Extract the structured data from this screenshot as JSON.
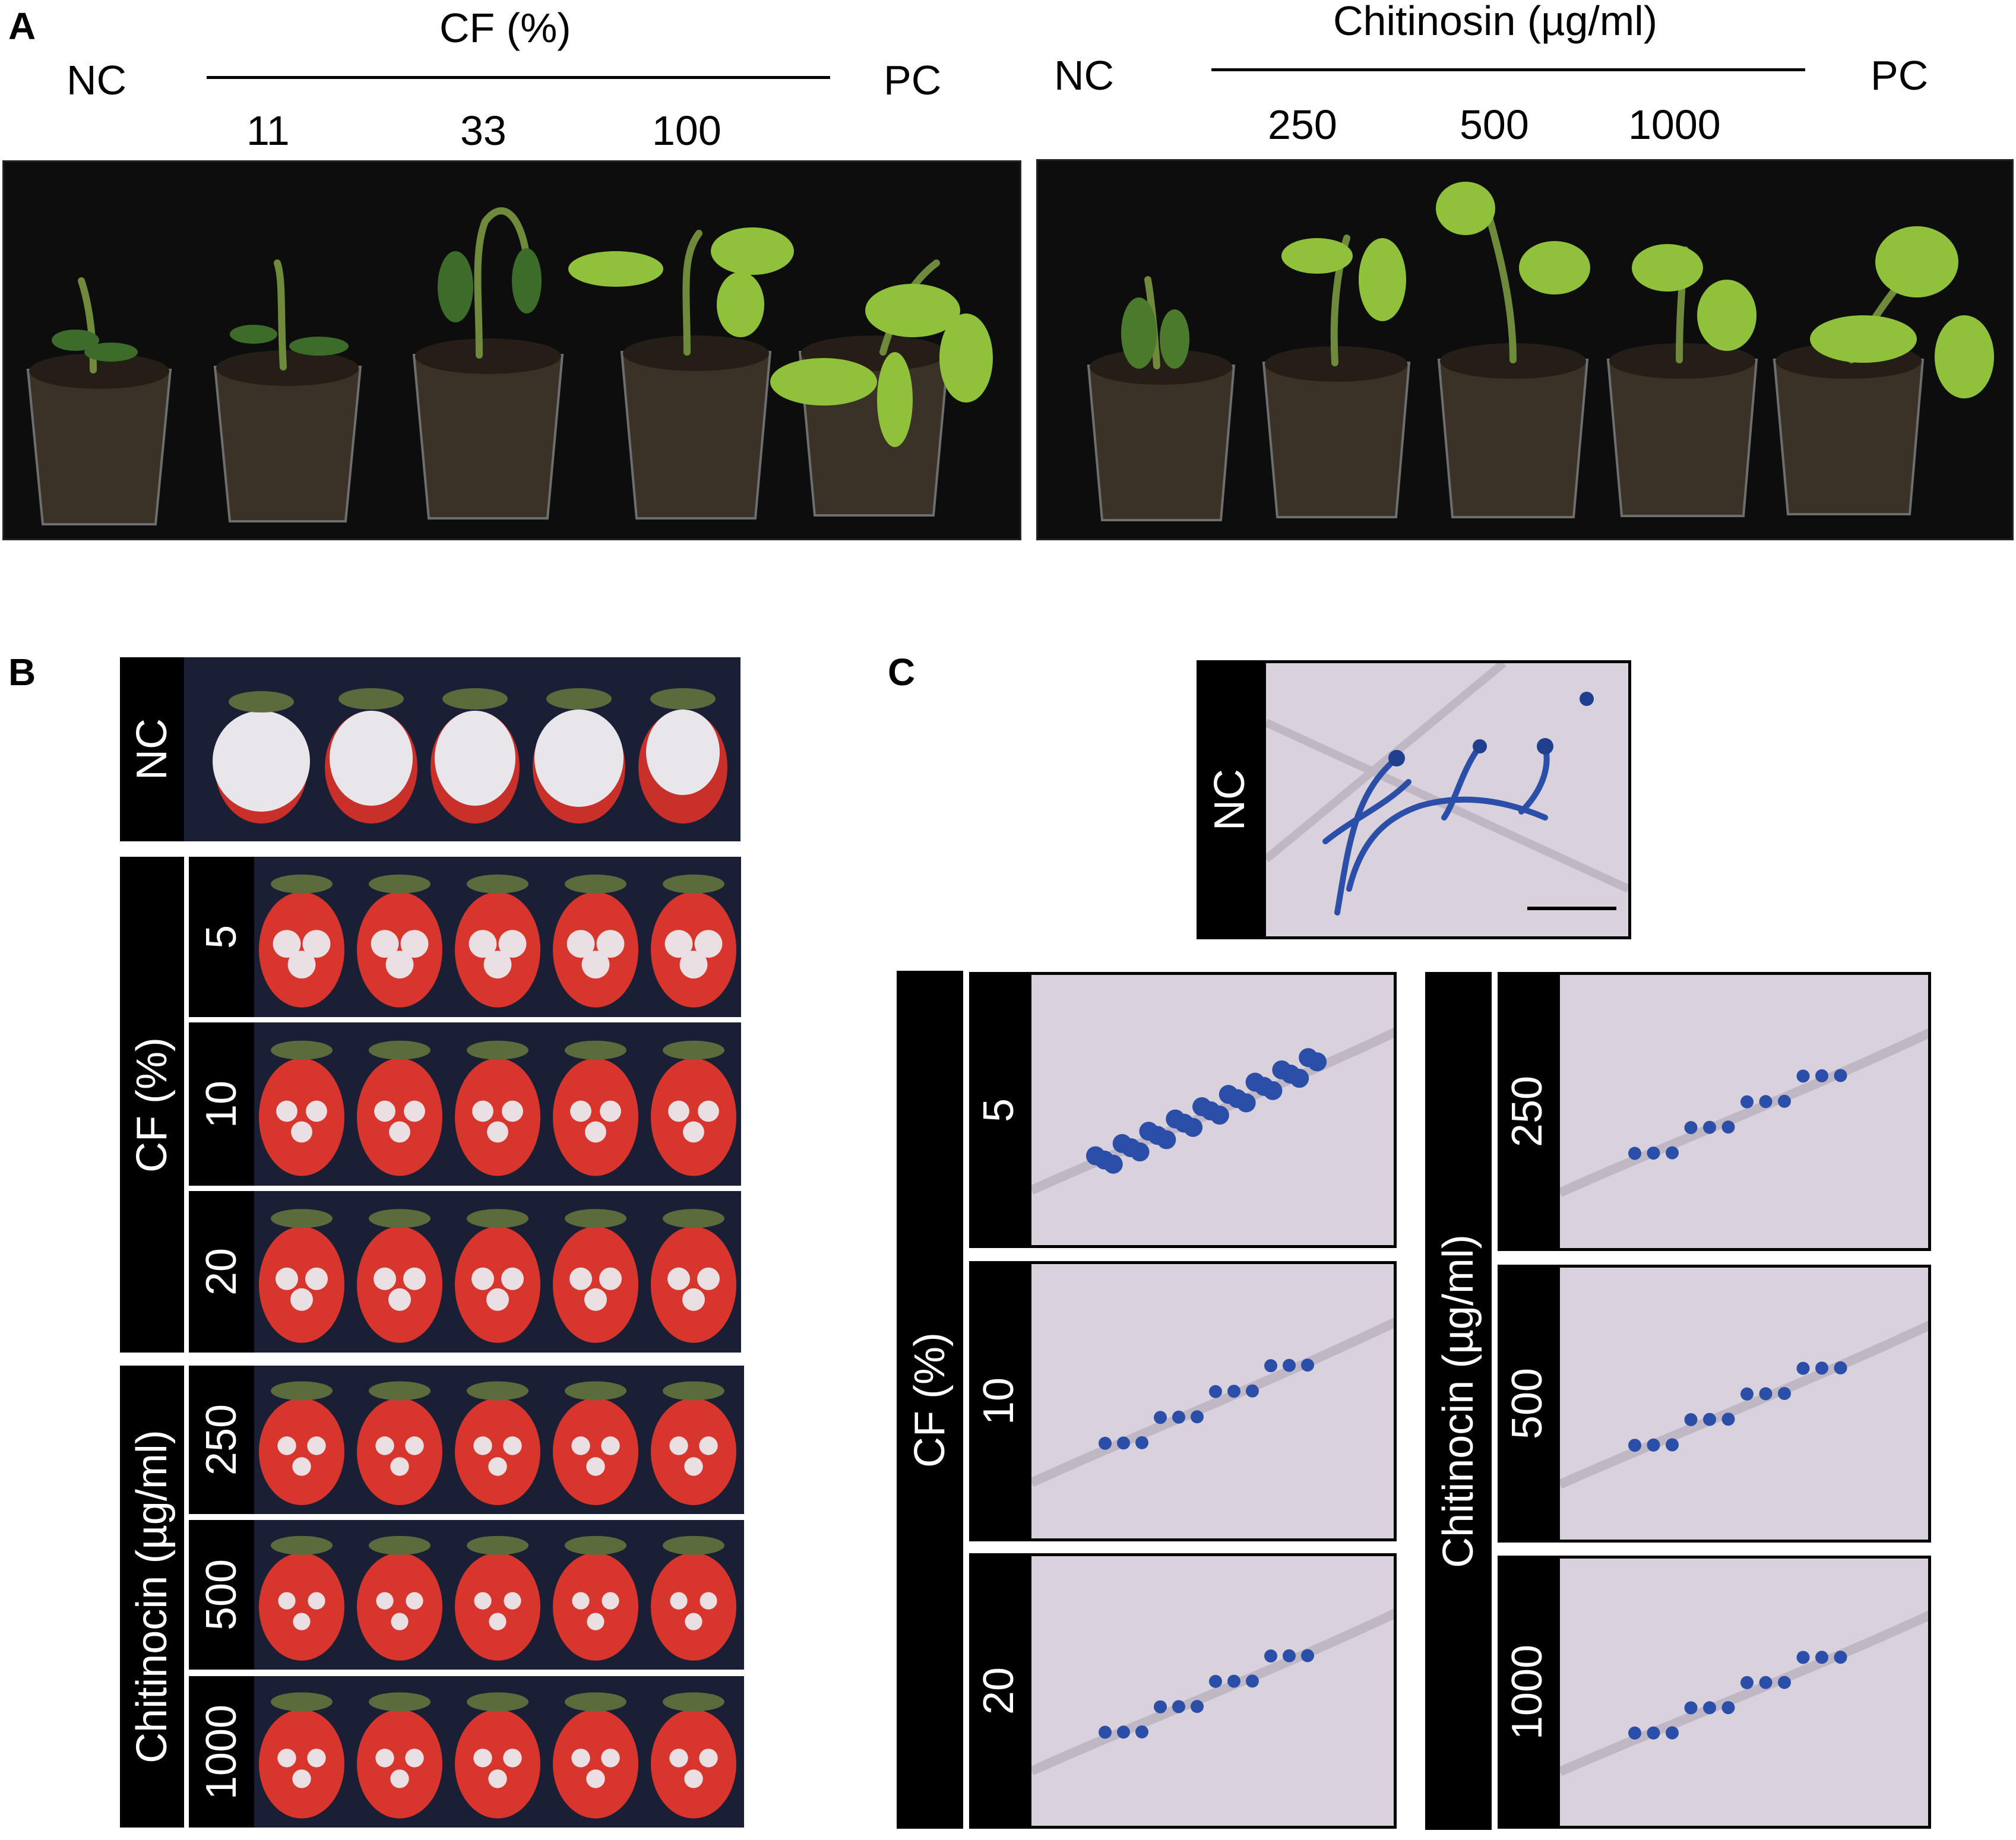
{
  "panelA": {
    "letter": "A",
    "left": {
      "nc": "NC",
      "group": "CF (%)",
      "doses": [
        "11",
        "33",
        "100"
      ],
      "pc": "PC"
    },
    "right": {
      "nc": "NC",
      "group": "Chitinosin (µg/ml)",
      "doses": [
        "250",
        "500",
        "1000"
      ],
      "pc": "PC"
    }
  },
  "panelB": {
    "letter": "B",
    "nc": "NC",
    "cf_group": "CF (%)",
    "cf_doses": [
      "5",
      "10",
      "20"
    ],
    "chit_group": "Chitinocin (µg/ml)",
    "chit_doses": [
      "250",
      "500",
      "1000"
    ]
  },
  "panelC": {
    "letter": "C",
    "nc": "NC",
    "cf_group": "CF (%)",
    "cf_doses": [
      "5",
      "10",
      "20"
    ],
    "chit_group": "Chitinocin (µg/ml)",
    "chit_doses": [
      "250",
      "500",
      "1000"
    ]
  },
  "colors": {
    "plant_bg": "#0d0d0d",
    "berry_bg": "#1a1f35",
    "micro_bg": "#d9d2dc",
    "stain": "#2b4fa8"
  }
}
